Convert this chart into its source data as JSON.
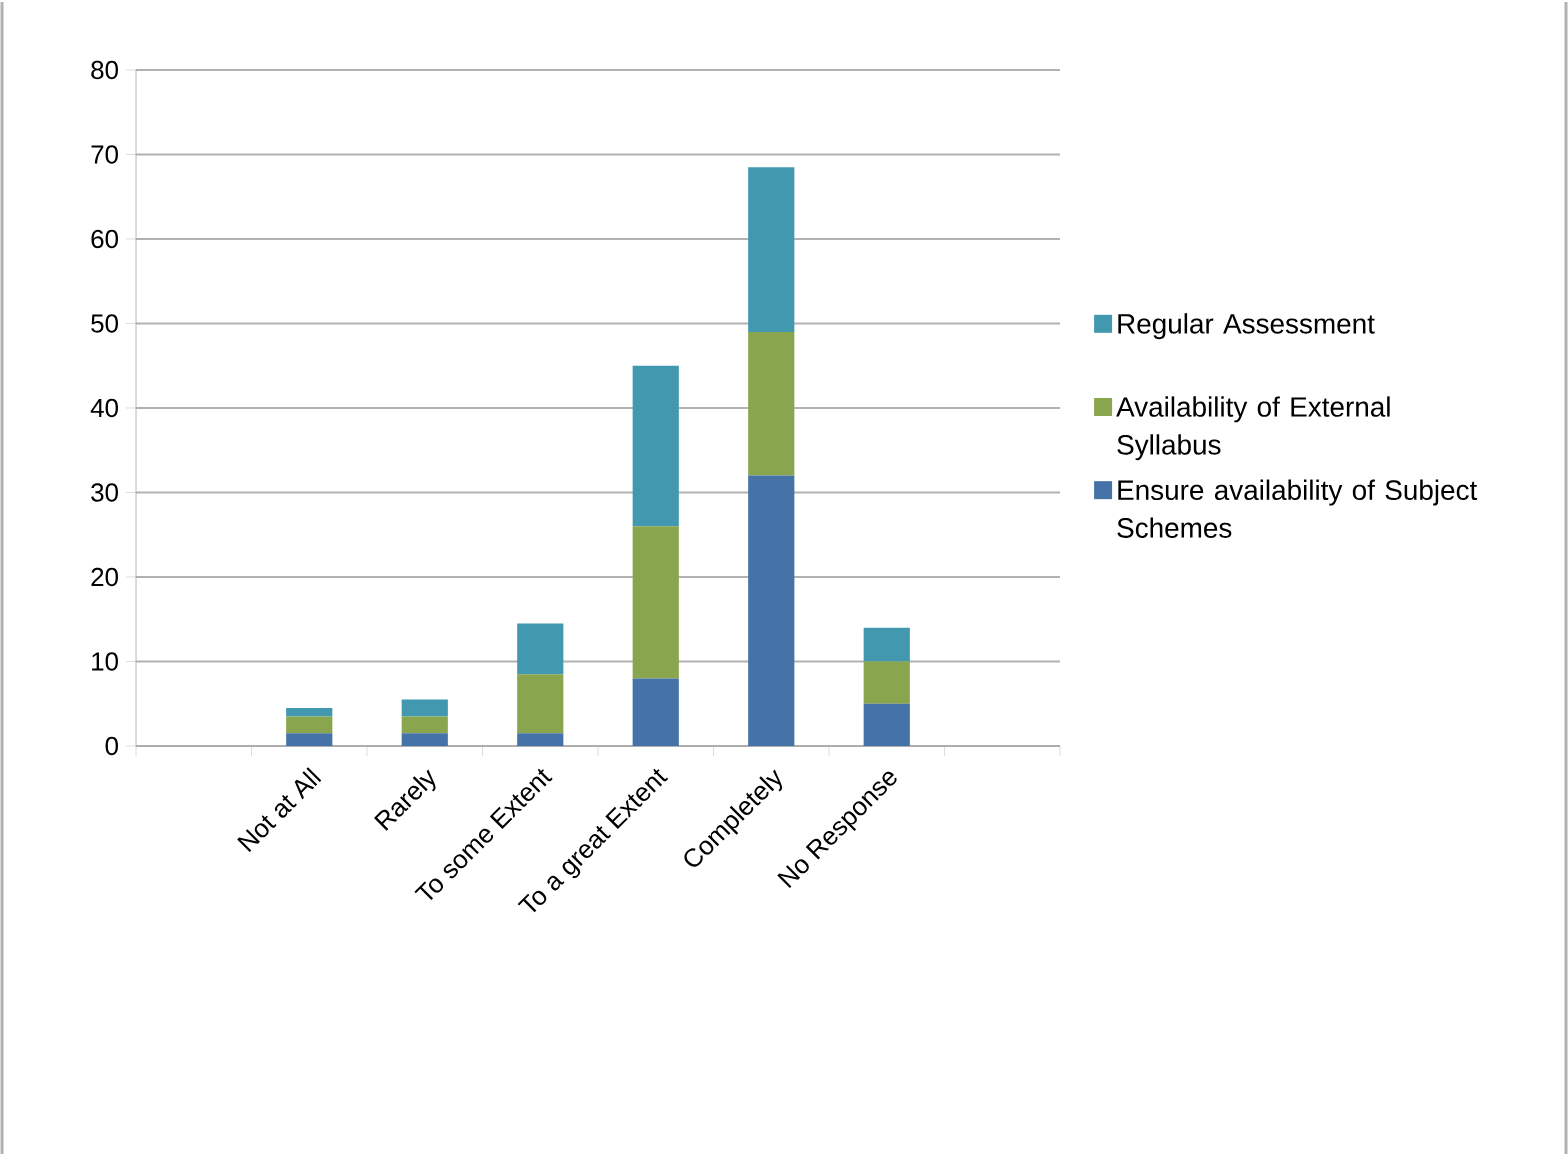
{
  "chart_data": {
    "type": "bar",
    "stacked": true,
    "categories": [
      null,
      "Not at All",
      "Rarely",
      "To some Extent",
      "To a great Extent",
      "Completely",
      "No Response",
      null
    ],
    "series": [
      {
        "name": "Ensure availability of Subject Schemes",
        "color": "#4572a7",
        "values": [
          null,
          1.5,
          1.5,
          1.5,
          8,
          32,
          5,
          null
        ]
      },
      {
        "name": "Availability of External Syllabus",
        "color": "#89a54e",
        "values": [
          null,
          2,
          2,
          7,
          18,
          17,
          5,
          null
        ]
      },
      {
        "name": "Regular Assessment",
        "color": "#4198af",
        "values": [
          null,
          1,
          2,
          6,
          19,
          19.5,
          4,
          null
        ]
      }
    ],
    "ylim": [
      0,
      80
    ],
    "yticks": [
      0,
      10,
      20,
      30,
      40,
      50,
      60,
      70,
      80
    ],
    "grid": "y",
    "legend": "right"
  }
}
